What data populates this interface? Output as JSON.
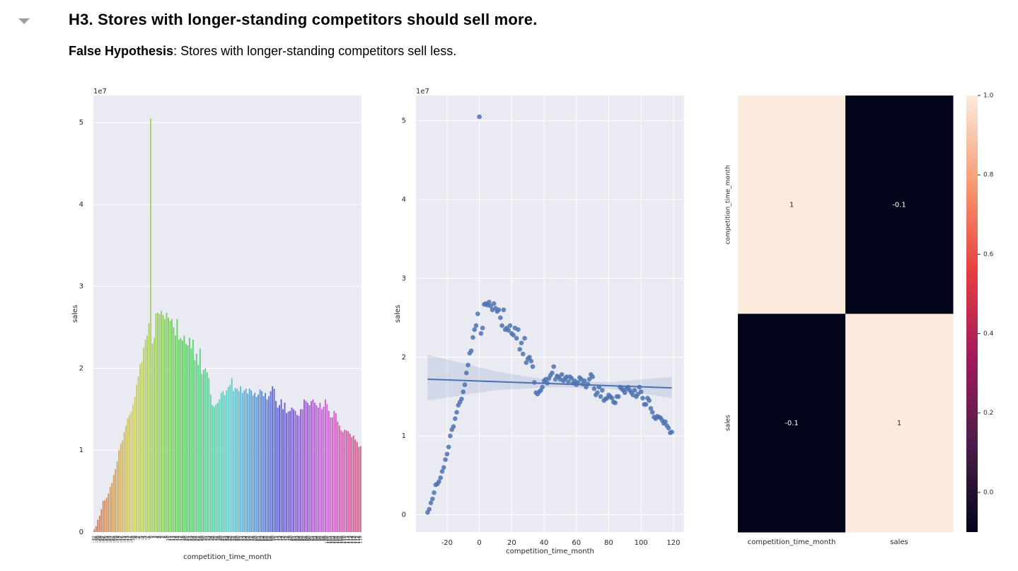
{
  "header": {
    "title": "H3. Stores with longer-standing competitors should sell more.",
    "label": "False Hypothesis",
    "text": ": Stores with longer-standing competitors sell less."
  },
  "chart_data": [
    {
      "type": "bar",
      "categories": [
        -32,
        -31,
        -30,
        -29,
        -28,
        -27,
        -26,
        -25,
        -24,
        -23,
        -22,
        -21,
        -20,
        -19,
        -18,
        -17,
        -16,
        -15,
        -14,
        -13,
        -12,
        -11,
        -10,
        -9,
        -8,
        -7,
        -6,
        -5,
        -4,
        -3,
        -2,
        -1,
        0,
        1,
        2,
        3,
        4,
        5,
        6,
        7,
        8,
        9,
        10,
        11,
        12,
        13,
        14,
        15,
        16,
        17,
        18,
        19,
        20,
        21,
        22,
        23,
        24,
        25,
        26,
        27,
        28,
        29,
        30,
        31,
        32,
        33,
        34,
        35,
        36,
        37,
        38,
        39,
        40,
        41,
        42,
        43,
        44,
        45,
        46,
        47,
        48,
        49,
        50,
        51,
        52,
        53,
        54,
        55,
        56,
        57,
        58,
        59,
        60,
        61,
        62,
        63,
        64,
        65,
        66,
        67,
        68,
        69,
        70,
        71,
        72,
        73,
        74,
        75,
        76,
        77,
        78,
        79,
        80,
        81,
        82,
        83,
        84,
        85,
        86,
        87,
        88,
        89,
        90,
        91,
        92,
        93,
        94,
        95,
        96,
        97,
        98,
        99,
        100,
        101,
        102,
        103,
        104,
        105,
        106,
        107,
        108,
        109,
        110,
        111,
        112,
        113,
        114,
        115,
        116,
        117,
        118,
        119
      ],
      "values": [
        0.03,
        0.07,
        0.15,
        0.2,
        0.28,
        0.38,
        0.39,
        0.42,
        0.47,
        0.55,
        0.6,
        0.7,
        0.77,
        0.86,
        1.0,
        1.08,
        1.12,
        1.22,
        1.3,
        1.39,
        1.43,
        1.47,
        1.56,
        1.65,
        1.8,
        1.9,
        2.05,
        2.08,
        2.25,
        2.35,
        2.4,
        2.55,
        5.05,
        2.3,
        2.37,
        2.67,
        2.68,
        2.66,
        2.7,
        2.65,
        2.6,
        2.68,
        2.62,
        2.58,
        2.6,
        2.5,
        2.4,
        2.6,
        2.35,
        2.37,
        2.34,
        2.4,
        2.3,
        2.28,
        2.37,
        2.24,
        2.35,
        2.1,
        2.18,
        2.04,
        2.24,
        1.93,
        1.98,
        2.0,
        1.95,
        1.88,
        1.68,
        1.55,
        1.53,
        1.56,
        1.58,
        1.62,
        1.7,
        1.72,
        1.67,
        1.73,
        1.77,
        1.8,
        1.88,
        1.72,
        1.76,
        1.75,
        1.72,
        1.78,
        1.7,
        1.73,
        1.75,
        1.69,
        1.75,
        1.73,
        1.67,
        1.7,
        1.65,
        1.68,
        1.74,
        1.72,
        1.66,
        1.7,
        1.62,
        1.66,
        1.72,
        1.78,
        1.75,
        1.6,
        1.52,
        1.55,
        1.62,
        1.5,
        1.58,
        1.45,
        1.47,
        1.48,
        1.52,
        1.5,
        1.48,
        1.43,
        1.42,
        1.5,
        1.5,
        1.62,
        1.6,
        1.58,
        1.55,
        1.6,
        1.62,
        1.58,
        1.55,
        1.52,
        1.58,
        1.5,
        1.53,
        1.62,
        1.56,
        1.48,
        1.4,
        1.4,
        1.48,
        1.45,
        1.35,
        1.3,
        1.24,
        1.22,
        1.25,
        1.24,
        1.23,
        1.2,
        1.16,
        1.18,
        1.13,
        1.1,
        1.04,
        1.05
      ],
      "palette": "husl",
      "background": "#eaeaf2",
      "grid": true,
      "ylim": [
        0,
        5.33
      ],
      "yticks": [
        0,
        1,
        2,
        3,
        4,
        5
      ],
      "y_offset_label": "1e7",
      "xlabel": "competition_time_month",
      "ylabel": "sales"
    },
    {
      "type": "scatter",
      "x": [
        -32,
        -31,
        -30,
        -29,
        -28,
        -27,
        -26,
        -25,
        -24,
        -23,
        -22,
        -21,
        -20,
        -19,
        -18,
        -17,
        -16,
        -15,
        -14,
        -13,
        -12,
        -11,
        -10,
        -9,
        -8,
        -7,
        -6,
        -5,
        -4,
        -3,
        -2,
        -1,
        0,
        1,
        2,
        3,
        4,
        5,
        6,
        7,
        8,
        9,
        10,
        11,
        12,
        13,
        14,
        15,
        16,
        17,
        18,
        19,
        20,
        21,
        22,
        23,
        24,
        25,
        26,
        27,
        28,
        29,
        30,
        31,
        32,
        33,
        34,
        35,
        36,
        37,
        38,
        39,
        40,
        41,
        42,
        43,
        44,
        45,
        46,
        47,
        48,
        49,
        50,
        51,
        52,
        53,
        54,
        55,
        56,
        57,
        58,
        59,
        60,
        61,
        62,
        63,
        64,
        65,
        66,
        67,
        68,
        69,
        70,
        71,
        72,
        73,
        74,
        75,
        76,
        77,
        78,
        79,
        80,
        81,
        82,
        83,
        84,
        85,
        86,
        87,
        88,
        89,
        90,
        91,
        92,
        93,
        94,
        95,
        96,
        97,
        98,
        99,
        100,
        101,
        102,
        103,
        104,
        105,
        106,
        107,
        108,
        109,
        110,
        111,
        112,
        113,
        114,
        115,
        116,
        117,
        118,
        119
      ],
      "values": [
        0.03,
        0.07,
        0.15,
        0.2,
        0.28,
        0.38,
        0.39,
        0.42,
        0.47,
        0.55,
        0.6,
        0.7,
        0.77,
        0.86,
        1.0,
        1.08,
        1.12,
        1.22,
        1.3,
        1.39,
        1.43,
        1.47,
        1.56,
        1.65,
        1.8,
        1.9,
        2.05,
        2.08,
        2.25,
        2.35,
        2.4,
        2.55,
        5.05,
        2.3,
        2.37,
        2.67,
        2.68,
        2.66,
        2.7,
        2.65,
        2.6,
        2.68,
        2.62,
        2.58,
        2.6,
        2.5,
        2.4,
        2.6,
        2.35,
        2.37,
        2.34,
        2.4,
        2.3,
        2.28,
        2.37,
        2.24,
        2.35,
        2.1,
        2.18,
        2.04,
        2.24,
        1.93,
        1.98,
        2.0,
        1.95,
        1.88,
        1.68,
        1.55,
        1.53,
        1.56,
        1.58,
        1.62,
        1.7,
        1.72,
        1.67,
        1.73,
        1.77,
        1.8,
        1.88,
        1.72,
        1.76,
        1.75,
        1.72,
        1.78,
        1.7,
        1.73,
        1.75,
        1.69,
        1.75,
        1.73,
        1.67,
        1.7,
        1.65,
        1.68,
        1.74,
        1.72,
        1.66,
        1.7,
        1.62,
        1.66,
        1.72,
        1.78,
        1.75,
        1.6,
        1.52,
        1.55,
        1.62,
        1.5,
        1.58,
        1.45,
        1.47,
        1.48,
        1.52,
        1.5,
        1.48,
        1.43,
        1.42,
        1.5,
        1.5,
        1.62,
        1.6,
        1.58,
        1.55,
        1.6,
        1.62,
        1.58,
        1.55,
        1.52,
        1.58,
        1.5,
        1.53,
        1.62,
        1.56,
        1.48,
        1.4,
        1.4,
        1.48,
        1.45,
        1.35,
        1.3,
        1.24,
        1.22,
        1.25,
        1.24,
        1.23,
        1.2,
        1.16,
        1.18,
        1.13,
        1.1,
        1.04,
        1.05
      ],
      "color": "#4c72b0",
      "background": "#eaeaf2",
      "grid": true,
      "xlim": [
        -39.2,
        126.6
      ],
      "xticks": [
        -20,
        0,
        20,
        40,
        60,
        80,
        100,
        120
      ],
      "ylim": [
        -0.22,
        5.32
      ],
      "yticks": [
        0,
        1,
        2,
        3,
        4,
        5
      ],
      "y_offset_label": "1e7",
      "regression": {
        "x": [
          -32,
          119
        ],
        "values": [
          1.72,
          1.61
        ]
      },
      "ci": {
        "x": [
          -32,
          10,
          45,
          80,
          119
        ],
        "lower": [
          1.45,
          1.58,
          1.62,
          1.6,
          1.48
        ],
        "upper": [
          2.03,
          1.82,
          1.7,
          1.68,
          1.75
        ]
      },
      "xlabel": "competition_time_month",
      "ylabel": "sales"
    },
    {
      "type": "heatmap",
      "rows": [
        "competition_time_month",
        "sales"
      ],
      "columns": [
        "competition_time_month",
        "sales"
      ],
      "values": [
        [
          1,
          -0.1
        ],
        [
          -0.1,
          1
        ]
      ],
      "clim": [
        -0.1,
        1
      ],
      "cbar_ticks": [
        {
          "value": 0,
          "label": "0.0"
        },
        0.2,
        0.4,
        0.6,
        0.8,
        {
          "value": 1,
          "label": "1.0"
        }
      ],
      "colormap": [
        "#03051a",
        "#4c1d4b",
        "#a11a5b",
        "#e83f3f",
        "#f69c73",
        "#faebdd"
      ]
    }
  ]
}
